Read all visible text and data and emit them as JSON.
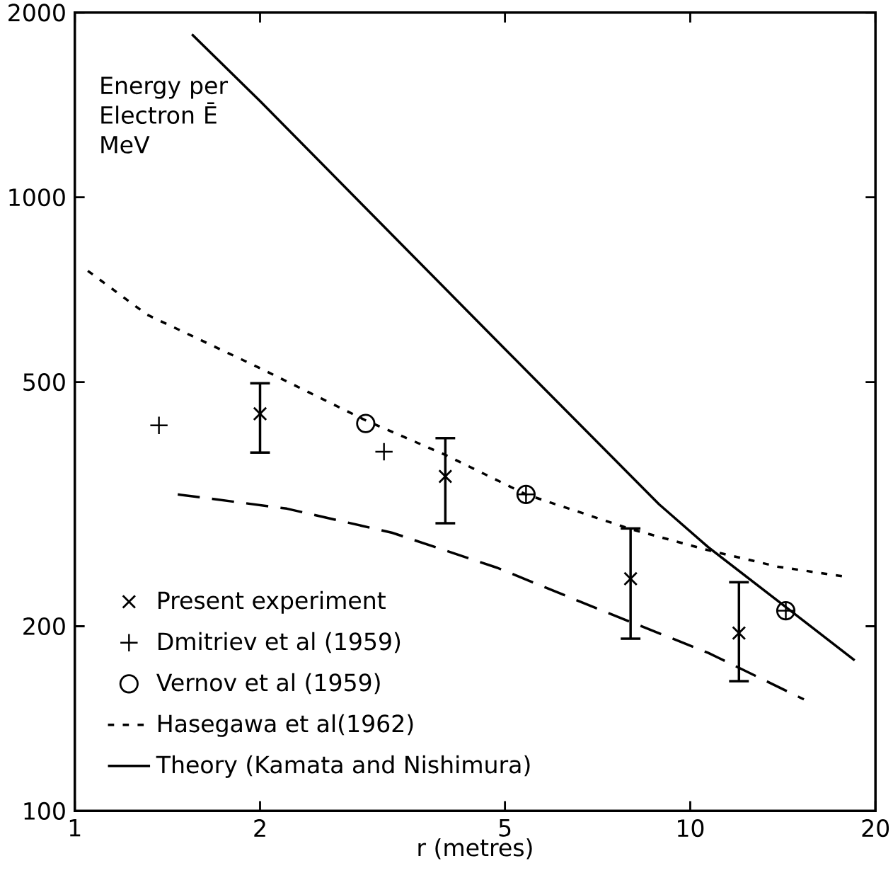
{
  "chart_data": {
    "type": "scatter",
    "xlabel": "r (metres)",
    "ylabel": "Energy per Electron Ē MeV",
    "log": "xy",
    "xlim": [
      1,
      20
    ],
    "ylim": [
      100,
      2000
    ],
    "xticks": [
      1,
      2,
      5,
      10,
      20
    ],
    "yticks": [
      100,
      200,
      500,
      1000,
      2000
    ],
    "legend": "bottom left",
    "series": [
      {
        "name": "Present experiment",
        "color": "#000000",
        "marker": "cross",
        "x": [
          2.0,
          4.0,
          8.0,
          12.0
        ],
        "values": [
          444,
          351,
          239,
          195
        ],
        "errors": [
          [
            382,
            500
          ],
          [
            293,
            407
          ],
          [
            190,
            290
          ],
          [
            162,
            237
          ]
        ]
      },
      {
        "name": "Dmitriev et al (1959)",
        "color": "#000000",
        "marker": "plus",
        "x": [
          1.37,
          3.18,
          5.41,
          14.3
        ],
        "values": [
          425,
          385,
          328,
          212
        ]
      },
      {
        "name": "Vernov et al (1959)",
        "color": "#000000",
        "marker": "circle",
        "x": [
          2.97,
          5.41,
          14.3
        ],
        "values": [
          428,
          328,
          212
        ]
      },
      {
        "name": "Hasegawa et al(1962)",
        "type": "line",
        "color": "#000000",
        "line_style": "dotted",
        "x": [
          1.05,
          1.31,
          1.99,
          2.97,
          4.01,
          5.41,
          8.0,
          10.7,
          13.9,
          17.8
        ],
        "values": [
          759,
          644,
          528,
          433,
          380,
          328,
          288,
          266,
          250,
          241
        ]
      },
      {
        "name": "Theory (Kamata and Nishimura)",
        "type": "line",
        "color": "#000000",
        "line_style": "solid",
        "x": [
          1.55,
          2.0,
          5.0,
          8.9,
          10.7,
          14.3,
          18.5
        ],
        "values": [
          1843,
          1435,
          566,
          316,
          269,
          215,
          176
        ]
      },
      {
        "type": "line",
        "color": "#000000",
        "line_style": "dashed",
        "x": [
          1.47,
          2.21,
          3.28,
          4.86,
          7.2,
          10.7,
          15.3
        ],
        "values": [
          328,
          311,
          284,
          249,
          212,
          181,
          152
        ]
      }
    ]
  }
}
